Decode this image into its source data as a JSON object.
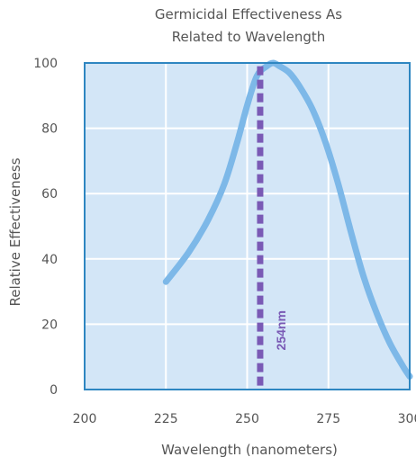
{
  "chart_data": {
    "type": "line",
    "title": [
      "Germicidal Effectiveness As",
      "Related to Wavelength"
    ],
    "xlabel": "Wavelength (nanometers)",
    "ylabel": "Relative Effectiveness",
    "xlim": [
      200,
      300
    ],
    "ylim": [
      0,
      100
    ],
    "xticks": [
      200,
      225,
      250,
      275,
      300
    ],
    "yticks": [
      0,
      20,
      40,
      60,
      80,
      100
    ],
    "grid": true,
    "series": [
      {
        "x": [
          225,
          232,
          238,
          243,
          247,
          250,
          253,
          256,
          258,
          260,
          263,
          266,
          270,
          274,
          278,
          282,
          286,
          290,
          294,
          298,
          300
        ],
        "y": [
          33,
          42,
          52,
          63,
          76,
          87,
          96,
          99,
          100,
          99,
          97,
          93,
          86,
          76,
          63,
          48,
          34,
          23,
          14,
          7,
          4
        ]
      }
    ],
    "annotations": [
      {
        "x": 254,
        "label": "254nm"
      }
    ],
    "colors": {
      "plot_bg": "#d3e6f7",
      "frame": "#2e86c1",
      "grid": "#ffffff",
      "curve": "#7db8e8",
      "marker": "#7a5ab5"
    }
  }
}
